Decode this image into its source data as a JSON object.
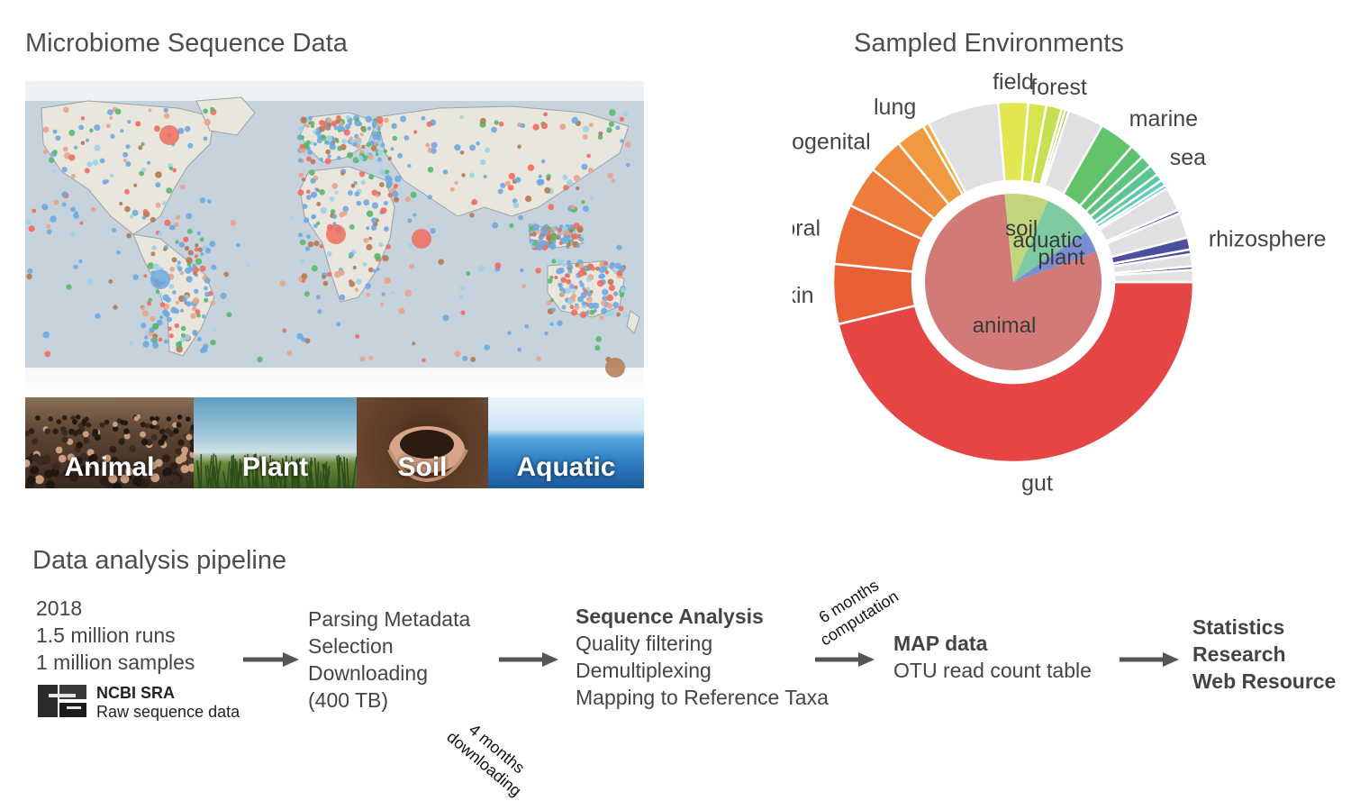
{
  "map_section": {
    "title": "Microbiome Sequence Data"
  },
  "env_categories": [
    {
      "label": "Animal",
      "color": "#4e3b2c"
    },
    {
      "label": "Plant",
      "color": "#8fb2c8"
    },
    {
      "label": "Soil",
      "color": "#5a3b26"
    },
    {
      "label": "Aquatic",
      "color": "#2f7fc4"
    }
  ],
  "chart_section": {
    "title": "Sampled Environments"
  },
  "chart_data": {
    "type": "pie",
    "title": "Sampled Environments",
    "inner": [
      {
        "label": "animal",
        "value": 79,
        "color": "#d27a77"
      },
      {
        "label": "soil",
        "value": 8,
        "color": "#c3d47f"
      },
      {
        "label": "aquatic",
        "value": 9,
        "color": "#7fcba1"
      },
      {
        "label": "plant",
        "value": 4,
        "color": "#7a8fd1"
      }
    ],
    "outer": [
      {
        "label": "gut",
        "value": 43.0,
        "color": "#e64545"
      },
      {
        "label": "skin",
        "value": 5.0,
        "color": "#e85f36"
      },
      {
        "label": "oral",
        "value": 5.0,
        "color": "#eb6b38"
      },
      {
        "label": "",
        "value": 3.5,
        "color": "#ec7d3a"
      },
      {
        "label": "urogenital",
        "value": 3.0,
        "color": "#ee8b3c"
      },
      {
        "label": "",
        "value": 2.5,
        "color": "#f09a40"
      },
      {
        "label": "lung",
        "value": 0.5,
        "color": "#f0aa38"
      },
      {
        "label": "",
        "value": 6.0,
        "color": "#e0e0e3"
      },
      {
        "label": "field",
        "value": 2.5,
        "color": "#e3e74f"
      },
      {
        "label": "",
        "value": 1.5,
        "color": "#d6e44f"
      },
      {
        "label": "forest",
        "value": 1.3,
        "color": "#c7df52"
      },
      {
        "label": "",
        "value": 0.3,
        "color": "#b7d554"
      },
      {
        "label": "",
        "value": 0.3,
        "color": "#a6cf54"
      },
      {
        "label": "",
        "value": 3.0,
        "color": "#e0e0e3"
      },
      {
        "label": "marine",
        "value": 3.0,
        "color": "#63c36a"
      },
      {
        "label": "",
        "value": 1.2,
        "color": "#5dc26f"
      },
      {
        "label": "",
        "value": 1.0,
        "color": "#5dc380"
      },
      {
        "label": "sea",
        "value": 0.9,
        "color": "#5cc693"
      },
      {
        "label": "",
        "value": 0.6,
        "color": "#5ec9a9"
      },
      {
        "label": "",
        "value": 0.5,
        "color": "#5fcbbd"
      },
      {
        "label": "",
        "value": 0.3,
        "color": "#5bc9cc"
      },
      {
        "label": "",
        "value": 2.0,
        "color": "#e0e0e3"
      },
      {
        "label": "",
        "value": 0.3,
        "color": "#4a58a8"
      },
      {
        "label": "",
        "value": 2.1,
        "color": "#e0e0e3"
      },
      {
        "label": "rhizosphere",
        "value": 1.0,
        "color": "#4a4fa0"
      },
      {
        "label": "",
        "value": 0.4,
        "color": "#4a4fa0"
      },
      {
        "label": "",
        "value": 1.0,
        "color": "#e0e0e3"
      },
      {
        "label": "",
        "value": 0.3,
        "color": "#4a4fa0"
      },
      {
        "label": "",
        "value": 1.0,
        "color": "#e0e0e3"
      }
    ]
  },
  "pipeline": {
    "title": "Data analysis pipeline",
    "source": {
      "lines": [
        "2018",
        "1.5 million runs",
        "1 million samples"
      ],
      "org": "NCBI SRA",
      "org_sub": "Raw sequence data"
    },
    "step1": {
      "lines": [
        "Parsing Metadata",
        "Selection",
        "Downloading",
        "(400 TB)"
      ]
    },
    "step1_note": [
      "4 months",
      "downloading"
    ],
    "step2": {
      "heading": "Sequence Analysis",
      "lines": [
        "Quality filtering",
        "Demultiplexing",
        "Mapping to Reference Taxa"
      ]
    },
    "step2_note": [
      "6 months",
      "computation"
    ],
    "step3": {
      "heading": "MAP data",
      "lines": [
        "OTU read count table"
      ]
    },
    "step4": {
      "lines": [
        "Statistics",
        "Research",
        "Web Resource"
      ]
    }
  },
  "colors": {
    "gut": "#e64545",
    "map_ocean": "#c6d3dc",
    "map_land": "#e9e6de",
    "arrow": "#555555"
  }
}
